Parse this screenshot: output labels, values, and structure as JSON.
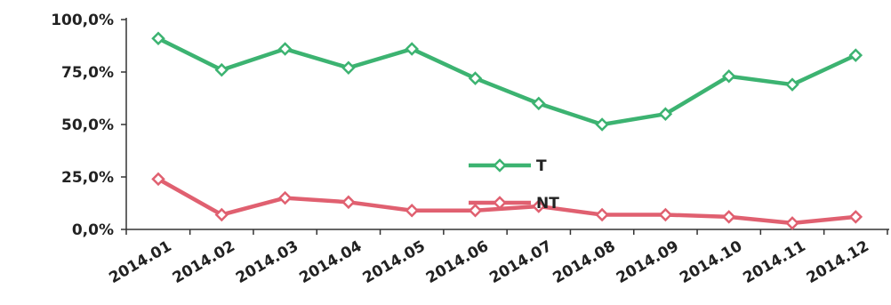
{
  "chart_data": {
    "type": "line",
    "categories": [
      "2014.01",
      "2014.02",
      "2014.03",
      "2014.04",
      "2014.05",
      "2014.06",
      "2014.07",
      "2014.08",
      "2014.09",
      "2014.10",
      "2014.11",
      "2014.12"
    ],
    "series": [
      {
        "name": "T",
        "color": "#3cb371",
        "values": [
          91,
          76,
          86,
          77,
          86,
          72,
          60,
          50,
          55,
          73,
          69,
          83
        ]
      },
      {
        "name": "NT",
        "color": "#e06070",
        "values": [
          24,
          7,
          15,
          13,
          9,
          9,
          11,
          7,
          7,
          6,
          3,
          6
        ]
      }
    ],
    "y_ticks": [
      "0,0%",
      "25,0%",
      "50,0%",
      "75,0%",
      "100,0%"
    ],
    "ylim": [
      0,
      100
    ],
    "title": "",
    "xlabel": "",
    "ylabel": "",
    "grid": false,
    "legend_position": "center"
  }
}
